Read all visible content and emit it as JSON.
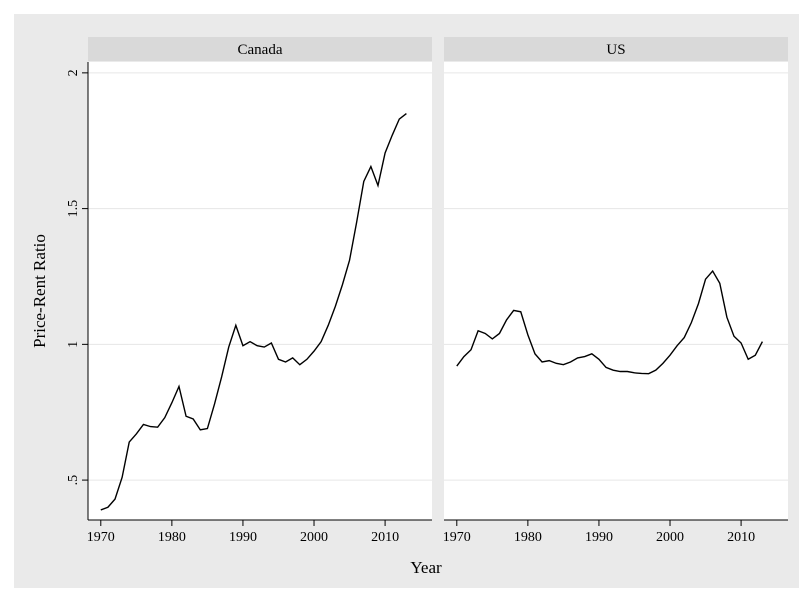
{
  "chart_data": {
    "type": "line",
    "facet": true,
    "x_label": "Year",
    "y_label": "Price-Rent Ratio",
    "x": [
      1970,
      1971,
      1972,
      1973,
      1974,
      1975,
      1976,
      1977,
      1978,
      1979,
      1980,
      1981,
      1982,
      1983,
      1984,
      1985,
      1986,
      1987,
      1988,
      1989,
      1990,
      1991,
      1992,
      1993,
      1994,
      1995,
      1996,
      1997,
      1998,
      1999,
      2000,
      2001,
      2002,
      2003,
      2004,
      2005,
      2006,
      2007,
      2008,
      2009,
      2010,
      2011,
      2012,
      2013
    ],
    "xlim": [
      1968.2,
      2016.6
    ],
    "xticks": [
      1970,
      1980,
      1990,
      2000,
      2010
    ],
    "ylim": [
      0.353,
      2.04
    ],
    "yticks": [
      {
        "value": 0.5,
        "label": ".5"
      },
      1,
      1.5,
      2
    ],
    "grid": true,
    "series": [
      {
        "name": "Canada",
        "color": "#000000",
        "values": [
          0.39,
          0.4,
          0.43,
          0.51,
          0.64,
          0.67,
          0.705,
          0.697,
          0.695,
          0.73,
          0.785,
          0.845,
          0.735,
          0.725,
          0.685,
          0.69,
          0.78,
          0.88,
          0.99,
          1.07,
          0.995,
          1.01,
          0.995,
          0.99,
          1.005,
          0.945,
          0.935,
          0.95,
          0.925,
          0.945,
          0.975,
          1.01,
          1.07,
          1.14,
          1.22,
          1.31,
          1.45,
          1.6,
          1.655,
          1.585,
          1.705,
          1.77,
          1.83,
          1.85
        ]
      },
      {
        "name": "US",
        "color": "#000000",
        "values": [
          0.92,
          0.955,
          0.98,
          1.05,
          1.04,
          1.02,
          1.04,
          1.09,
          1.125,
          1.12,
          1.035,
          0.965,
          0.935,
          0.94,
          0.93,
          0.925,
          0.935,
          0.95,
          0.955,
          0.965,
          0.945,
          0.915,
          0.905,
          0.9,
          0.9,
          0.895,
          0.893,
          0.892,
          0.905,
          0.93,
          0.96,
          0.995,
          1.025,
          1.08,
          1.15,
          1.24,
          1.27,
          1.225,
          1.1,
          1.03,
          1.005,
          0.945,
          0.96,
          1.01
        ]
      }
    ]
  }
}
